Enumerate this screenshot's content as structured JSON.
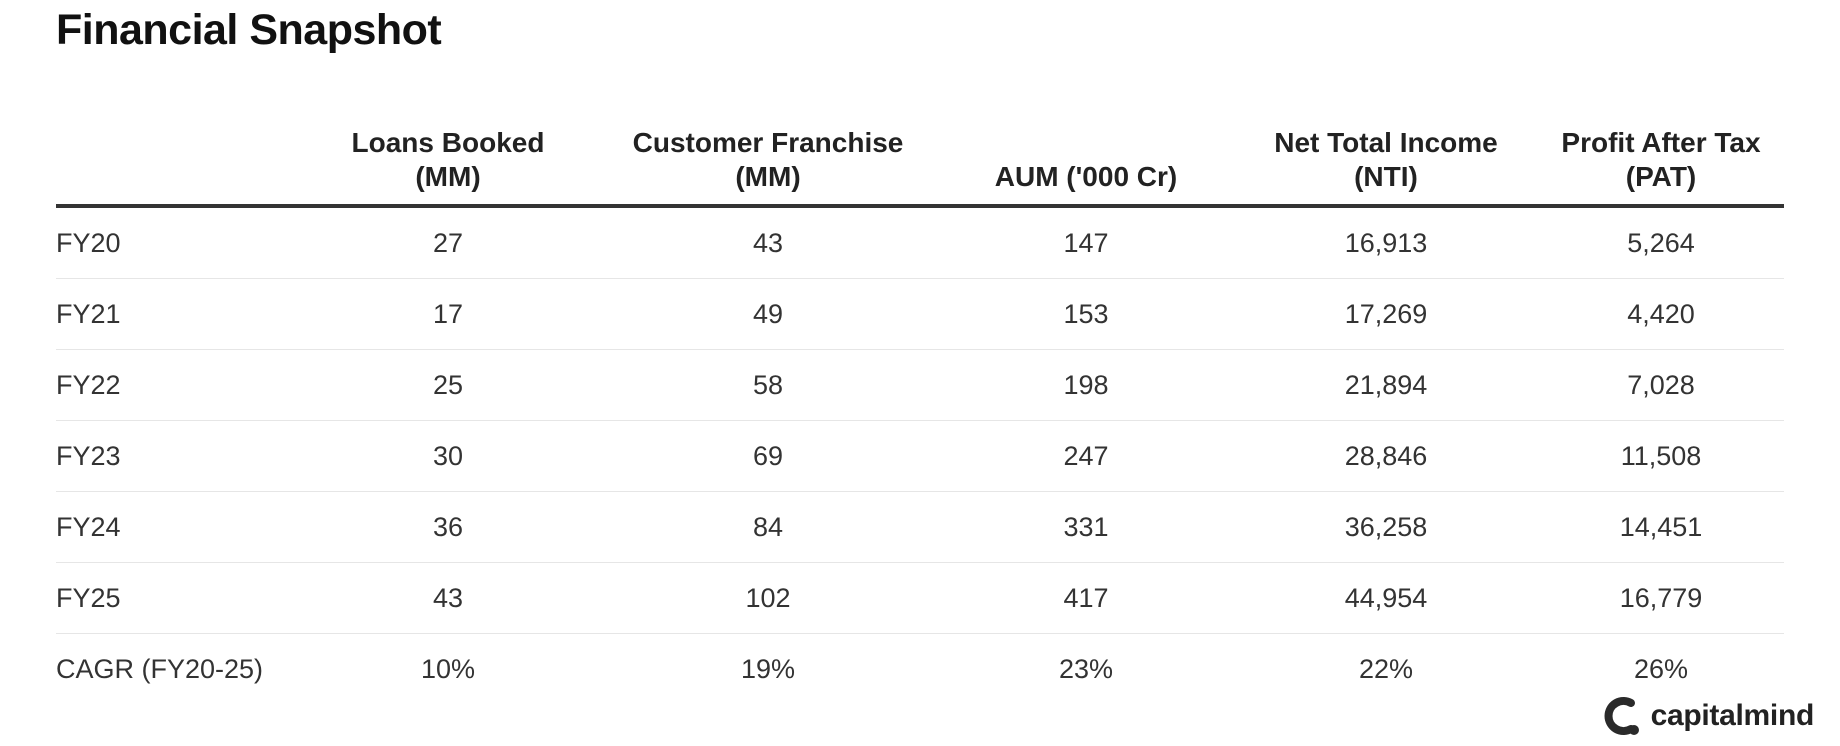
{
  "title": "Financial Snapshot",
  "chart_data": {
    "type": "table",
    "title": "Financial Snapshot",
    "columns": [
      {
        "key": "label",
        "header": [
          "",
          ""
        ]
      },
      {
        "key": "loans_booked",
        "header": [
          "Loans Booked",
          "(MM)"
        ]
      },
      {
        "key": "customer_franchise",
        "header": [
          "Customer Franchise",
          "(MM)"
        ]
      },
      {
        "key": "aum",
        "header": [
          "",
          "AUM ('000 Cr)"
        ]
      },
      {
        "key": "nti",
        "header": [
          "Net Total Income",
          "(NTI)"
        ]
      },
      {
        "key": "pat",
        "header": [
          "Profit After Tax",
          "(PAT)"
        ]
      }
    ],
    "rows": [
      [
        "FY20",
        "27",
        "43",
        "147",
        "16,913",
        "5,264"
      ],
      [
        "FY21",
        "17",
        "49",
        "153",
        "17,269",
        "4,420"
      ],
      [
        "FY22",
        "25",
        "58",
        "198",
        "21,894",
        "7,028"
      ],
      [
        "FY23",
        "30",
        "69",
        "247",
        "28,846",
        "11,508"
      ],
      [
        "FY24",
        "36",
        "84",
        "331",
        "36,258",
        "14,451"
      ],
      [
        "FY25",
        "43",
        "102",
        "417",
        "44,954",
        "16,779"
      ],
      [
        "CAGR (FY20-25)",
        "10%",
        "19%",
        "23%",
        "22%",
        "26%"
      ]
    ]
  },
  "brand": {
    "name": "capitalmind",
    "icon": "capitalmind-logo-icon"
  },
  "colors": {
    "text": "#222222",
    "header_rule": "#333333",
    "row_divider": "#e6e6e6",
    "background": "#ffffff"
  }
}
